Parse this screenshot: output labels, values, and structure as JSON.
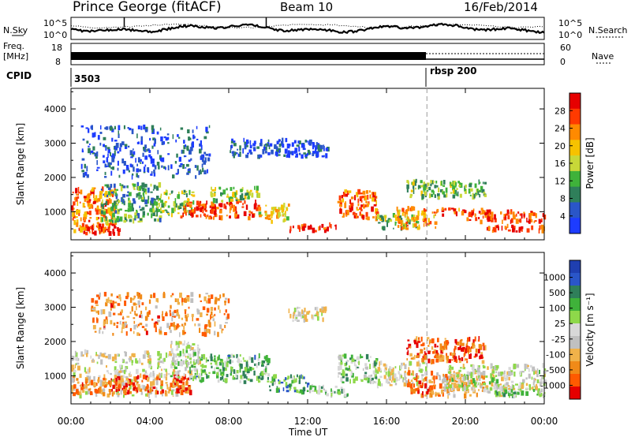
{
  "header": {
    "station": "Prince George (fitACF)",
    "beam": "Beam 10",
    "date": "16/Feb/2014"
  },
  "sky_panel": {
    "left_label": "N.Sky",
    "right_label": "N.Search",
    "left_ticks": [
      "10^5",
      "10^0"
    ],
    "right_ticks": [
      "10^5",
      "10^0"
    ]
  },
  "freq_panel": {
    "left_label_1": "Freq.",
    "left_label_2": "[MHz]",
    "left_ticks": [
      "18",
      "8"
    ],
    "right_ticks": [
      "60",
      "0"
    ],
    "right_label": "Nave"
  },
  "cpid_panel": {
    "label": "CPID",
    "segments": [
      {
        "start_h": 0,
        "text": "3503"
      },
      {
        "start_h": 18,
        "text": "rbsp 200"
      }
    ]
  },
  "x_axis": {
    "label": "Time UT",
    "ticks": [
      "00:00",
      "04:00",
      "08:00",
      "12:00",
      "16:00",
      "20:00",
      "00:00"
    ],
    "start_h": 0,
    "end_h": 24
  },
  "colors": {
    "power_scale": [
      "#1d3cff",
      "#2a56c8",
      "#2f7f5a",
      "#3fb23a",
      "#c8d838",
      "#f6c200",
      "#ff8a00",
      "#ff3a00",
      "#e60000"
    ],
    "velocity_scale": [
      "#e60000",
      "#ff5a00",
      "#f08a18",
      "#f0b24a",
      "#c0c0c0",
      "#d8d8d8",
      "#8ed84a",
      "#3fb23a",
      "#2f7f5a",
      "#2a56c8",
      "#1f3fb0"
    ],
    "text": "#000000",
    "marker_line": "#9a9a9a"
  },
  "chart_data": [
    {
      "type": "heatmap",
      "name": "power",
      "ylabel": "Slant Range [km]",
      "ylim": [
        180,
        4600
      ],
      "yticks": [
        1000,
        2000,
        3000,
        4000
      ],
      "xlim": [
        0,
        24
      ],
      "colorbar_label": "Power [dB]",
      "colorbar_ticks": [
        4,
        8,
        12,
        16,
        20,
        24,
        28
      ],
      "colorbar_range": [
        0,
        32
      ],
      "marker_time_h": 18.05,
      "regions": [
        {
          "t0": 0.0,
          "t1": 2.2,
          "r0": 400,
          "r1": 1700,
          "level": 0.75
        },
        {
          "t0": 0.2,
          "t1": 2.5,
          "r0": 350,
          "r1": 600,
          "level": 0.9
        },
        {
          "t0": 1.5,
          "t1": 4.5,
          "r0": 700,
          "r1": 1800,
          "level": 0.35
        },
        {
          "t0": 4.5,
          "t1": 6.2,
          "r0": 900,
          "r1": 1600,
          "level": 0.45
        },
        {
          "t0": 5.5,
          "t1": 9.5,
          "r0": 800,
          "r1": 1300,
          "level": 0.85
        },
        {
          "t0": 7.0,
          "t1": 9.5,
          "r0": 1300,
          "r1": 1700,
          "level": 0.45
        },
        {
          "t0": 9.5,
          "t1": 11.0,
          "r0": 700,
          "r1": 1200,
          "level": 0.6
        },
        {
          "t0": 11.0,
          "t1": 13.5,
          "r0": 420,
          "r1": 620,
          "level": 0.85
        },
        {
          "t0": 13.5,
          "t1": 15.5,
          "r0": 800,
          "r1": 1600,
          "level": 0.8
        },
        {
          "t0": 15.5,
          "t1": 17.5,
          "r0": 500,
          "r1": 900,
          "level": 0.4
        },
        {
          "t0": 16.5,
          "t1": 18.5,
          "r0": 500,
          "r1": 1100,
          "level": 0.7
        },
        {
          "t0": 18.5,
          "t1": 21.0,
          "r0": 900,
          "r1": 1100,
          "level": 0.8
        },
        {
          "t0": 20.0,
          "t1": 24.0,
          "r0": 700,
          "r1": 1000,
          "level": 0.85
        },
        {
          "t0": 21.0,
          "t1": 24.0,
          "r0": 420,
          "r1": 600,
          "level": 0.8
        },
        {
          "t0": 17.0,
          "t1": 21.0,
          "r0": 1400,
          "r1": 1900,
          "level": 0.4
        },
        {
          "t0": 0.5,
          "t1": 7.0,
          "r0": 2000,
          "r1": 3500,
          "level": 0.15
        },
        {
          "t0": 8.0,
          "t1": 13.0,
          "r0": 2600,
          "r1": 3100,
          "level": 0.15
        }
      ]
    },
    {
      "type": "heatmap",
      "name": "velocity",
      "ylabel": "Slant Range [km]",
      "ylim": [
        180,
        4600
      ],
      "yticks": [
        1000,
        2000,
        3000,
        4000
      ],
      "xlim": [
        0,
        24
      ],
      "colorbar_label": "Velocity [m s^-1]",
      "colorbar_ticks": [
        1000,
        500,
        100,
        25,
        -25,
        -100,
        -500,
        -1000
      ],
      "marker_time_h": 18.05,
      "regions": [
        {
          "t0": 0.0,
          "t1": 5.5,
          "r0": 400,
          "r1": 1700,
          "level": 0.45
        },
        {
          "t0": 0.0,
          "t1": 3.0,
          "r0": 450,
          "r1": 900,
          "level": 0.25
        },
        {
          "t0": 2.0,
          "t1": 6.0,
          "r0": 500,
          "r1": 1000,
          "level": 0.15
        },
        {
          "t0": 5.0,
          "t1": 6.5,
          "r0": 900,
          "r1": 2000,
          "level": 0.5
        },
        {
          "t0": 6.0,
          "t1": 10.0,
          "r0": 800,
          "r1": 1600,
          "level": 0.65
        },
        {
          "t0": 10.0,
          "t1": 12.0,
          "r0": 500,
          "r1": 1000,
          "level": 0.7
        },
        {
          "t0": 12.0,
          "t1": 14.0,
          "r0": 400,
          "r1": 700,
          "level": 0.62
        },
        {
          "t0": 13.5,
          "t1": 15.5,
          "r0": 800,
          "r1": 1600,
          "level": 0.6
        },
        {
          "t0": 15.5,
          "t1": 18.0,
          "r0": 700,
          "r1": 1400,
          "level": 0.45
        },
        {
          "t0": 17.0,
          "t1": 18.5,
          "r0": 400,
          "r1": 1100,
          "level": 0.2
        },
        {
          "t0": 18.5,
          "t1": 21.0,
          "r0": 400,
          "r1": 1100,
          "level": 0.3
        },
        {
          "t0": 19.0,
          "t1": 24.0,
          "r0": 600,
          "r1": 1300,
          "level": 0.48
        },
        {
          "t0": 21.0,
          "t1": 24.0,
          "r0": 400,
          "r1": 700,
          "level": 0.5
        },
        {
          "t0": 21.5,
          "t1": 22.5,
          "r0": 400,
          "r1": 550,
          "level": 0.65
        },
        {
          "t0": 17.0,
          "t1": 21.0,
          "r0": 1400,
          "r1": 2100,
          "level": 0.15
        },
        {
          "t0": 1.0,
          "t1": 8.0,
          "r0": 2200,
          "r1": 3400,
          "level": 0.25
        },
        {
          "t0": 11.0,
          "t1": 13.0,
          "r0": 2600,
          "r1": 3000,
          "level": 0.45
        }
      ]
    }
  ]
}
